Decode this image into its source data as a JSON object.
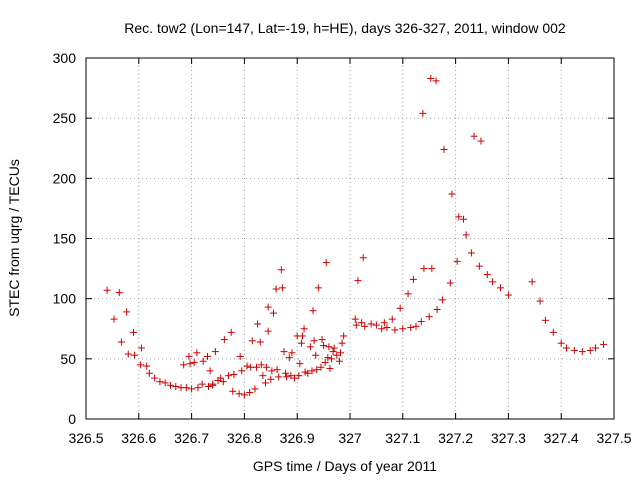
{
  "chart_data": {
    "type": "scatter",
    "title": "Rec. tow2 (Lon=147, Lat=-19, h=HE), days 326-327, 2011, window 002",
    "xlabel": "GPS time / Days of year 2011",
    "ylabel": "STEC from uqrg / TECUs",
    "xlim": [
      326.5,
      327.5
    ],
    "ylim": [
      0,
      300
    ],
    "grid": true,
    "marker": "+",
    "color": "#cc0000",
    "x_ticks": [
      "326.5",
      "326.6",
      "326.7",
      "326.8",
      "326.9",
      "327",
      "327.1",
      "327.2",
      "327.3",
      "327.4",
      "327.5"
    ],
    "y_ticks": [
      "0",
      "50",
      "100",
      "150",
      "200",
      "250",
      "300"
    ],
    "series": [
      {
        "points": [
          [
            326.54,
            107
          ],
          [
            326.553,
            83
          ],
          [
            326.563,
            105
          ],
          [
            326.567,
            64
          ],
          [
            326.577,
            89
          ],
          [
            326.58,
            54
          ],
          [
            326.59,
            72
          ],
          [
            326.592,
            53
          ],
          [
            326.603,
            45
          ],
          [
            326.605,
            59
          ],
          [
            326.615,
            44
          ],
          [
            326.62,
            38
          ],
          [
            326.63,
            34
          ],
          [
            326.64,
            31
          ],
          [
            326.65,
            30
          ],
          [
            326.66,
            28
          ],
          [
            326.67,
            27
          ],
          [
            326.68,
            26
          ],
          [
            326.685,
            45
          ],
          [
            326.69,
            26
          ],
          [
            326.695,
            52
          ],
          [
            326.697,
            46
          ],
          [
            326.7,
            25
          ],
          [
            326.705,
            47
          ],
          [
            326.71,
            55
          ],
          [
            326.712,
            26
          ],
          [
            326.72,
            29
          ],
          [
            326.722,
            48
          ],
          [
            326.73,
            52
          ],
          [
            326.732,
            27
          ],
          [
            326.735,
            40
          ],
          [
            326.74,
            28
          ],
          [
            326.74,
            29
          ],
          [
            326.745,
            56
          ],
          [
            326.75,
            32
          ],
          [
            326.755,
            34
          ],
          [
            326.76,
            31
          ],
          [
            326.762,
            66
          ],
          [
            326.77,
            36
          ],
          [
            326.775,
            72
          ],
          [
            326.778,
            23
          ],
          [
            326.78,
            37
          ],
          [
            326.79,
            21
          ],
          [
            326.792,
            52
          ],
          [
            326.795,
            40
          ],
          [
            326.8,
            20
          ],
          [
            326.805,
            44
          ],
          [
            326.81,
            22
          ],
          [
            326.812,
            43
          ],
          [
            326.815,
            65
          ],
          [
            326.82,
            25
          ],
          [
            326.823,
            43
          ],
          [
            326.825,
            79
          ],
          [
            326.83,
            64
          ],
          [
            326.832,
            45
          ],
          [
            326.835,
            36
          ],
          [
            326.84,
            30
          ],
          [
            326.842,
            43
          ],
          [
            326.845,
            73
          ],
          [
            326.845,
            93
          ],
          [
            326.85,
            33
          ],
          [
            326.852,
            40
          ],
          [
            326.855,
            88
          ],
          [
            326.86,
            108
          ],
          [
            326.862,
            41
          ],
          [
            326.865,
            35
          ],
          [
            326.87,
            124
          ],
          [
            326.872,
            109
          ],
          [
            326.875,
            56
          ],
          [
            326.878,
            38
          ],
          [
            326.88,
            35
          ],
          [
            326.885,
            51
          ],
          [
            326.888,
            36
          ],
          [
            326.89,
            55
          ],
          [
            326.895,
            34
          ],
          [
            326.9,
            69
          ],
          [
            326.903,
            36
          ],
          [
            326.905,
            46
          ],
          [
            326.908,
            63
          ],
          [
            326.91,
            69
          ],
          [
            326.913,
            75
          ],
          [
            326.915,
            39
          ],
          [
            326.92,
            38
          ],
          [
            326.925,
            60
          ],
          [
            326.928,
            40
          ],
          [
            326.93,
            90
          ],
          [
            326.932,
            65
          ],
          [
            326.935,
            53
          ],
          [
            326.937,
            41
          ],
          [
            326.94,
            109
          ],
          [
            326.945,
            43
          ],
          [
            326.947,
            66
          ],
          [
            326.95,
            61
          ],
          [
            326.953,
            47
          ],
          [
            326.955,
            130
          ],
          [
            326.958,
            51
          ],
          [
            326.96,
            60
          ],
          [
            326.962,
            42
          ],
          [
            326.965,
            50
          ],
          [
            326.968,
            56
          ],
          [
            326.97,
            59
          ],
          [
            326.975,
            53
          ],
          [
            326.98,
            48
          ],
          [
            326.982,
            55
          ],
          [
            326.985,
            63
          ],
          [
            326.988,
            69
          ],
          [
            327.01,
            83
          ],
          [
            327.012,
            78
          ],
          [
            327.015,
            115
          ],
          [
            327.022,
            80
          ],
          [
            327.025,
            134
          ],
          [
            327.028,
            77
          ],
          [
            327.04,
            79
          ],
          [
            327.05,
            78
          ],
          [
            327.06,
            75
          ],
          [
            327.065,
            80
          ],
          [
            327.07,
            76
          ],
          [
            327.08,
            83
          ],
          [
            327.085,
            74
          ],
          [
            327.095,
            92
          ],
          [
            327.1,
            75
          ],
          [
            327.11,
            104
          ],
          [
            327.115,
            76
          ],
          [
            327.12,
            116
          ],
          [
            327.125,
            77
          ],
          [
            327.135,
            81
          ],
          [
            327.138,
            254
          ],
          [
            327.14,
            125
          ],
          [
            327.15,
            85
          ],
          [
            327.153,
            283
          ],
          [
            327.155,
            125
          ],
          [
            327.163,
            281
          ],
          [
            327.165,
            91
          ],
          [
            327.175,
            99
          ],
          [
            327.178,
            224
          ],
          [
            327.19,
            113
          ],
          [
            327.193,
            187
          ],
          [
            327.203,
            131
          ],
          [
            327.206,
            168
          ],
          [
            327.215,
            166
          ],
          [
            327.22,
            153
          ],
          [
            327.23,
            138
          ],
          [
            327.235,
            235
          ],
          [
            327.245,
            127
          ],
          [
            327.248,
            231
          ],
          [
            327.26,
            120
          ],
          [
            327.27,
            114
          ],
          [
            327.285,
            109
          ],
          [
            327.3,
            103
          ],
          [
            327.345,
            114
          ],
          [
            327.36,
            98
          ],
          [
            327.37,
            82
          ],
          [
            327.385,
            72
          ],
          [
            327.4,
            63
          ],
          [
            327.41,
            59
          ],
          [
            327.425,
            57
          ],
          [
            327.44,
            56
          ],
          [
            327.455,
            57
          ],
          [
            327.465,
            59
          ],
          [
            327.48,
            62
          ]
        ]
      }
    ]
  }
}
